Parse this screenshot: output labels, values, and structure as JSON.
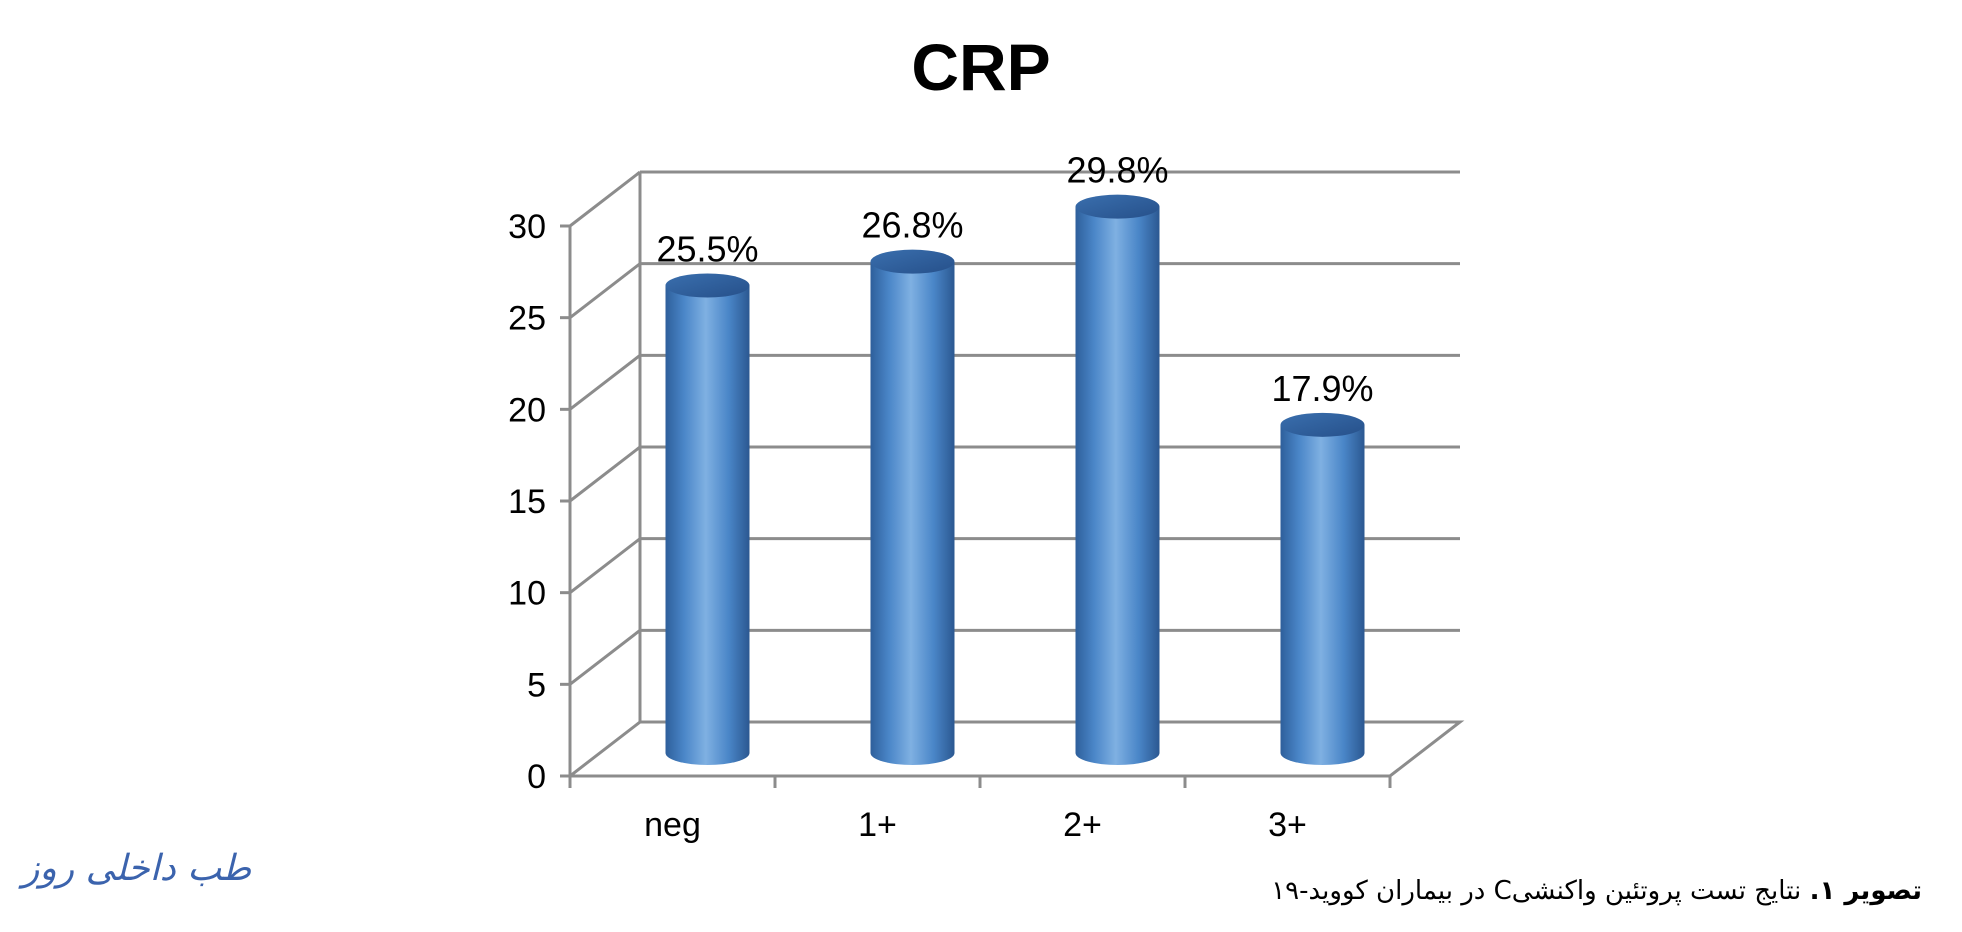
{
  "chart_data": {
    "type": "bar",
    "title": "CRP",
    "xlabel": "",
    "ylabel": "",
    "categories": [
      "neg",
      "1+",
      "2+",
      "3+"
    ],
    "values": [
      25.5,
      26.8,
      29.8,
      17.9
    ],
    "data_labels": [
      "25.5%",
      "26.8%",
      "29.8%",
      "17.9%"
    ],
    "ylim": [
      0,
      30
    ],
    "yticks": [
      "0",
      "5",
      "10",
      "15",
      "20",
      "25",
      "30"
    ],
    "grid": true,
    "style": "3d-cylinder",
    "bar_color": "#4a86c8"
  },
  "caption": {
    "bold": "تصویر ۱.",
    "text": " نتایج تست پروتئین واکنشیC در بیماران کووید-۱۹"
  },
  "watermark": {
    "text": "طب داخلی روز"
  }
}
